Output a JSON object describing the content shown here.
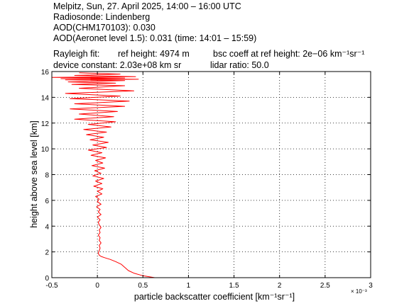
{
  "header": {
    "line1": "Melpitz, Sun, 27. April 2025, 14:00 – 16:00 UTC",
    "line2": "Radiosonde: Lindenberg",
    "line3": "AOD(CHM170103): 0.030",
    "line4": "AOD(Aeronet level 1.5): 0.031   (time: 14:01 – 15:59)",
    "line5_a": "Rayleigh fit:",
    "line5_b": "ref height: 4974 m",
    "line5_c": "bsc coeff at ref height: 2e−06 km⁻¹sr⁻¹",
    "line6_a": "device constant: 2.03e+08 km sr",
    "line6_b": "lidar ratio: 50.0"
  },
  "chart_data": {
    "type": "line",
    "xlabel": "particle backscatter coefficient [km⁻¹sr⁻¹]",
    "ylabel": "height above sea level [km]",
    "x_multiplier": "× 10⁻³",
    "xlim": [
      -0.5,
      3
    ],
    "ylim": [
      0,
      16
    ],
    "xticks": [
      -0.5,
      0,
      0.5,
      1,
      1.5,
      2,
      2.5,
      3
    ],
    "xtick_labels": [
      "-0.5",
      "0",
      "0.5",
      "1",
      "1.5",
      "2",
      "2.5",
      "3"
    ],
    "yticks": [
      0,
      2,
      4,
      6,
      8,
      10,
      12,
      14,
      16
    ],
    "ytick_labels": [
      "0",
      "2",
      "4",
      "6",
      "8",
      "10",
      "12",
      "14",
      "16"
    ],
    "grid": true,
    "series_color": "#ff0000",
    "series": [
      {
        "x": [
          0.63,
          0.5,
          0.4,
          0.34,
          0.3,
          0.26,
          0.2,
          0.14,
          0.08,
          0.04,
          0.02,
          0.01,
          0.02,
          0.03,
          0.02,
          0.04,
          0.02,
          0.03,
          0.01,
          0.03,
          0.02,
          0.04,
          0.02,
          0.01,
          0.03,
          0.0,
          0.04,
          0.01,
          0.03,
          -0.01,
          0.04,
          0.0,
          0.02,
          -0.02,
          0.05,
          0.0,
          0.06,
          -0.04,
          0.05,
          -0.02,
          0.07,
          -0.05,
          0.04,
          -0.03,
          0.08,
          -0.06,
          0.06,
          -0.02,
          0.09,
          -0.07,
          0.05,
          -0.1,
          0.1,
          -0.05,
          0.12,
          -0.08,
          0.07,
          -0.12,
          0.1,
          -0.15,
          0.15,
          -0.1,
          0.2,
          -0.25,
          0.18,
          -0.2,
          0.22,
          -0.3,
          0.3,
          -0.25,
          0.35,
          -0.3,
          0.25,
          -0.35,
          0.4,
          -0.2,
          0.3,
          -0.28,
          0.2,
          -0.32,
          0.3,
          -0.35,
          0.45,
          -0.4,
          0.3,
          -0.5,
          0.42,
          -0.25,
          0.25,
          -0.2
        ],
        "y": [
          0.0,
          0.15,
          0.35,
          0.55,
          0.8,
          1.05,
          1.25,
          1.42,
          1.55,
          1.65,
          1.75,
          1.9,
          2.1,
          2.3,
          2.5,
          2.7,
          2.9,
          3.1,
          3.3,
          3.5,
          3.7,
          3.9,
          4.1,
          4.3,
          4.5,
          4.7,
          4.9,
          5.1,
          5.3,
          5.5,
          5.7,
          5.9,
          6.1,
          6.3,
          6.5,
          6.7,
          6.9,
          7.1,
          7.3,
          7.5,
          7.7,
          7.9,
          8.1,
          8.3,
          8.5,
          8.7,
          8.9,
          9.1,
          9.3,
          9.5,
          9.7,
          9.9,
          10.1,
          10.3,
          10.5,
          10.7,
          10.9,
          11.1,
          11.3,
          11.5,
          11.7,
          11.9,
          12.1,
          12.3,
          12.5,
          12.7,
          12.9,
          13.1,
          13.3,
          13.5,
          13.7,
          13.9,
          14.1,
          14.3,
          14.5,
          14.7,
          14.9,
          15.0,
          15.1,
          15.2,
          15.3,
          15.35,
          15.4,
          15.45,
          15.5,
          15.55,
          15.6,
          15.7,
          15.8,
          15.9
        ]
      }
    ]
  }
}
